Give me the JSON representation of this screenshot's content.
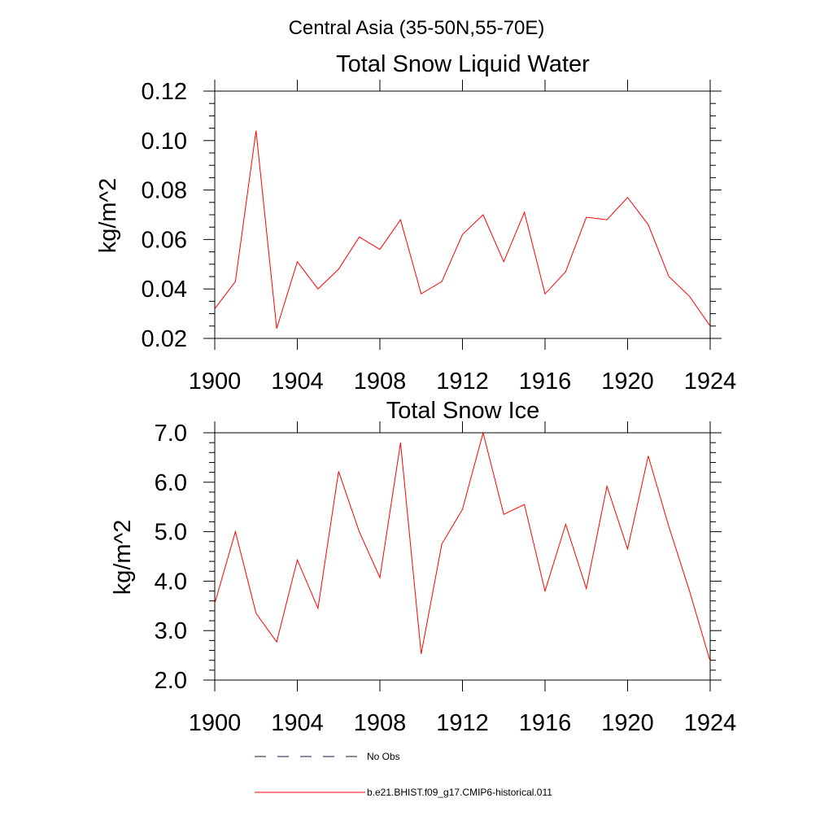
{
  "figure": {
    "title": "Central Asia (35-50N,55-70E)",
    "legend": [
      {
        "label": "No Obs",
        "style": "dashed",
        "color": "#1a1a4d"
      },
      {
        "label": "b.e21.BHIST.f09_g17.CMIP6-historical.011",
        "style": "solid",
        "color": "#ff0000"
      }
    ]
  },
  "chart_data": [
    {
      "type": "line",
      "title": "Total Snow Liquid Water",
      "xlabel": "",
      "ylabel": "kg/m^2",
      "xlim": [
        1900,
        1924
      ],
      "ylim": [
        0.02,
        0.12
      ],
      "x_ticks": [
        1900,
        1904,
        1908,
        1912,
        1916,
        1920,
        1924
      ],
      "x_tick_labels": [
        "1900",
        "1904",
        "1908",
        "1912",
        "1916",
        "1920",
        "1924"
      ],
      "y_ticks": [
        0.02,
        0.04,
        0.06,
        0.08,
        0.1,
        0.12
      ],
      "y_tick_labels": [
        "0.02",
        "0.04",
        "0.06",
        "0.08",
        "0.10",
        "0.12"
      ],
      "series": [
        {
          "name": "b.e21.BHIST.f09_g17.CMIP6-historical.011",
          "color": "#ff0000",
          "x": [
            1900,
            1901,
            1902,
            1903,
            1904,
            1905,
            1906,
            1907,
            1908,
            1909,
            1910,
            1911,
            1912,
            1913,
            1914,
            1915,
            1916,
            1917,
            1918,
            1919,
            1920,
            1921,
            1922,
            1923,
            1924
          ],
          "y": [
            0.032,
            0.043,
            0.104,
            0.024,
            0.051,
            0.04,
            0.048,
            0.061,
            0.056,
            0.068,
            0.038,
            0.043,
            0.062,
            0.07,
            0.051,
            0.071,
            0.038,
            0.047,
            0.069,
            0.068,
            0.077,
            0.066,
            0.045,
            0.037,
            0.025
          ]
        }
      ]
    },
    {
      "type": "line",
      "title": "Total Snow Ice",
      "xlabel": "",
      "ylabel": "kg/m^2",
      "xlim": [
        1900,
        1924
      ],
      "ylim": [
        2.0,
        7.0
      ],
      "x_ticks": [
        1900,
        1904,
        1908,
        1912,
        1916,
        1920,
        1924
      ],
      "x_tick_labels": [
        "1900",
        "1904",
        "1908",
        "1912",
        "1916",
        "1920",
        "1924"
      ],
      "y_ticks": [
        2,
        3,
        4,
        5,
        6,
        7
      ],
      "y_tick_labels": [
        "2.0",
        "3.0",
        "4.0",
        "5.0",
        "6.0",
        "7.0"
      ],
      "series": [
        {
          "name": "b.e21.BHIST.f09_g17.CMIP6-historical.011",
          "color": "#ff0000",
          "x": [
            1900,
            1901,
            1902,
            1903,
            1904,
            1905,
            1906,
            1907,
            1908,
            1909,
            1910,
            1911,
            1912,
            1913,
            1914,
            1915,
            1916,
            1917,
            1918,
            1919,
            1920,
            1921,
            1922,
            1923,
            1924
          ],
          "y": [
            3.55,
            5.0,
            3.35,
            2.77,
            4.43,
            3.45,
            6.22,
            5.0,
            4.07,
            6.8,
            2.53,
            4.75,
            5.45,
            7.0,
            5.35,
            5.55,
            3.8,
            5.15,
            3.85,
            5.92,
            4.65,
            6.53,
            5.1,
            3.8,
            2.38
          ]
        }
      ]
    }
  ]
}
